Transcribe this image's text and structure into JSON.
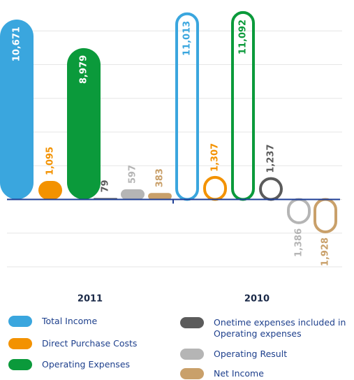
{
  "chart_data": {
    "type": "pill-bar",
    "categories": [
      "2011",
      "2010"
    ],
    "series": [
      {
        "name": "Total Income",
        "color": "#3aa6de",
        "values": [
          10671,
          11013
        ],
        "value_labels": [
          "10,671",
          "11,013"
        ]
      },
      {
        "name": "Direct Purchase Costs",
        "color": "#f39200",
        "values": [
          1095,
          1307
        ],
        "value_labels": [
          "1,095",
          "1,307"
        ]
      },
      {
        "name": "Operating Expenses",
        "color": "#0b9a3b",
        "values": [
          8979,
          11092
        ],
        "value_labels": [
          "8,979",
          "11,092"
        ]
      },
      {
        "name": "Onetime expenses included in Operating expenses",
        "color": "#5b5b5b",
        "values": [
          79,
          1237
        ],
        "value_labels": [
          "79",
          "1,237"
        ]
      },
      {
        "name": "Operating Result",
        "color": "#b5b5b5",
        "values": [
          597,
          -1386
        ],
        "value_labels": [
          "597",
          "1,386"
        ]
      },
      {
        "name": "Net Income",
        "color": "#c9a06a",
        "values": [
          383,
          -1928
        ],
        "value_labels": [
          "383",
          "1,928"
        ]
      }
    ],
    "ylim": [
      -4500,
      12000
    ],
    "yticks": [
      -4000,
      -2000,
      0,
      2000,
      4000,
      6000,
      8000,
      10000,
      12000
    ],
    "grid": true
  }
}
